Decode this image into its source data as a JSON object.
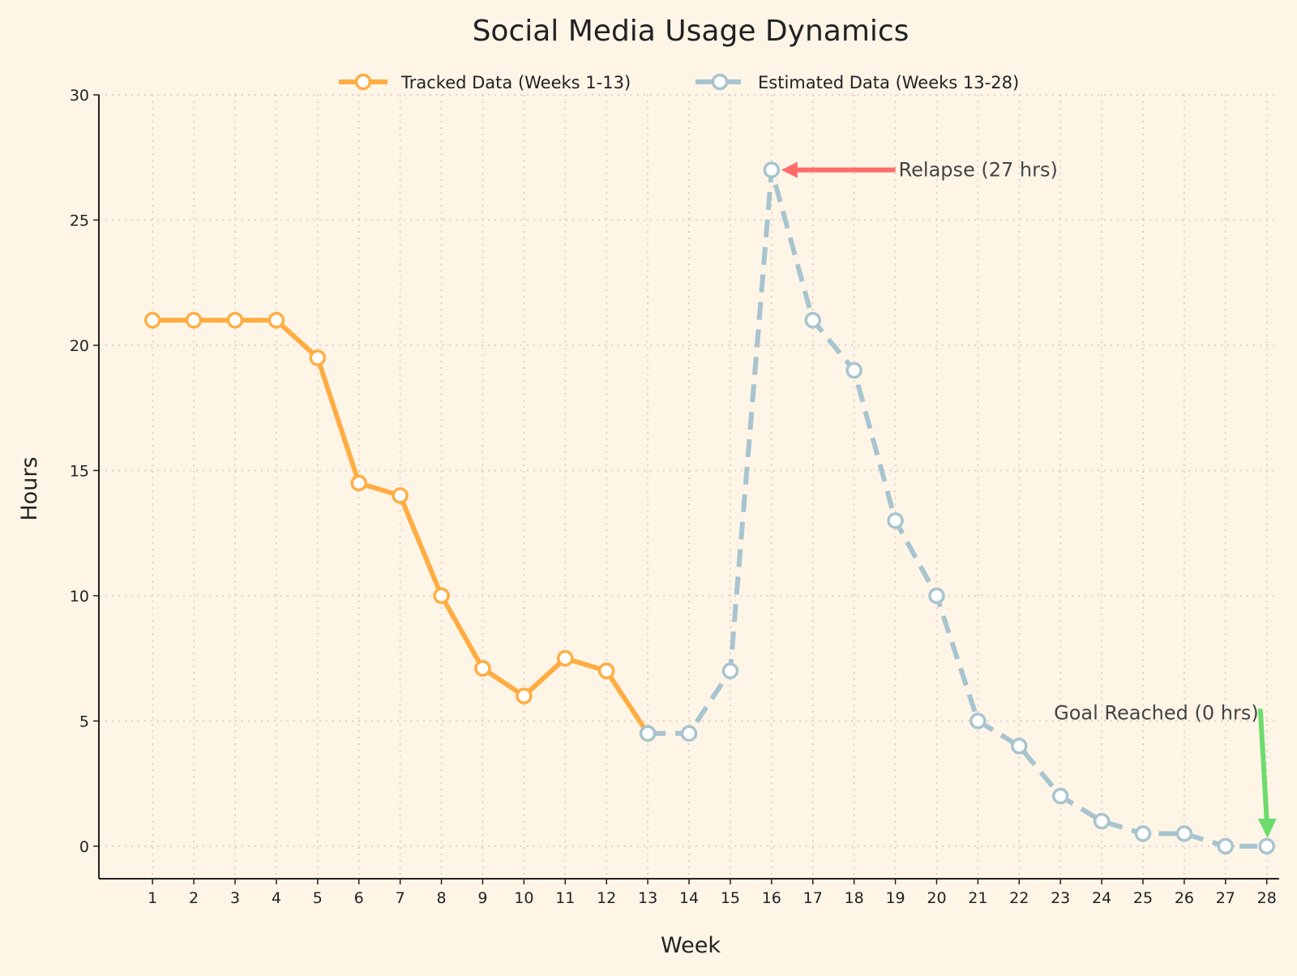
{
  "chart_data": {
    "type": "line",
    "title": "Social Media Usage Dynamics",
    "xlabel": "Week",
    "ylabel": "Hours",
    "ylim": [
      -1.3,
      30
    ],
    "xlim": [
      -0.3,
      28.3
    ],
    "yticks": [
      0,
      5,
      10,
      15,
      20,
      25,
      30
    ],
    "xticks": [
      1,
      2,
      3,
      4,
      5,
      6,
      7,
      8,
      9,
      10,
      11,
      12,
      13,
      14,
      15,
      16,
      17,
      18,
      19,
      20,
      21,
      22,
      23,
      24,
      25,
      26,
      27,
      28
    ],
    "grid": true,
    "legend_position": "top-center",
    "series": [
      {
        "name": "Tracked Data (Weeks 1-13)",
        "color": "#ffad42",
        "style": "solid",
        "x": [
          1,
          2,
          3,
          4,
          5,
          6,
          7,
          8,
          9,
          10,
          11,
          12,
          13
        ],
        "y": [
          21,
          21,
          21,
          21,
          19.5,
          14.5,
          14,
          10,
          7.1,
          6,
          7.5,
          7,
          4.5
        ]
      },
      {
        "name": "Estimated Data (Weeks 13-28)",
        "color": "#a7c4cf",
        "style": "dashed",
        "x": [
          13,
          14,
          15,
          16,
          17,
          18,
          19,
          20,
          21,
          22,
          23,
          24,
          25,
          26,
          27,
          28
        ],
        "y": [
          4.5,
          4.5,
          7,
          27,
          21,
          19,
          13,
          10,
          5,
          4,
          2,
          1,
          0.5,
          0.5,
          0,
          0
        ]
      }
    ],
    "annotations": [
      {
        "text": "Relapse (27 hrs)",
        "x": 16,
        "y": 27,
        "arrow_color": "#ff6b6b"
      },
      {
        "text": "Goal Reached (0 hrs)",
        "x": 28,
        "y": 0,
        "arrow_color": "#6ddc6d"
      }
    ]
  }
}
